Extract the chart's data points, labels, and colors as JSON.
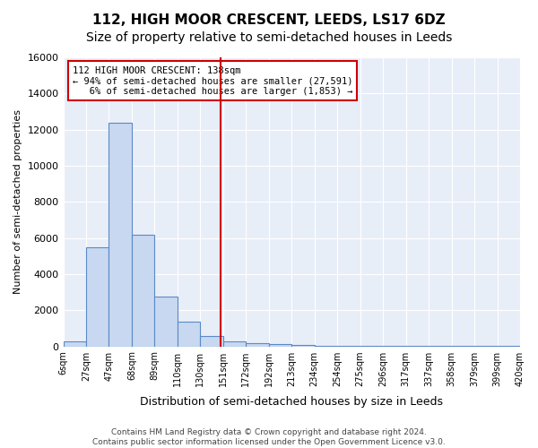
{
  "title": "112, HIGH MOOR CRESCENT, LEEDS, LS17 6DZ",
  "subtitle": "Size of property relative to semi-detached houses in Leeds",
  "xlabel": "Distribution of semi-detached houses by size in Leeds",
  "ylabel": "Number of semi-detached properties",
  "bin_edges": [
    "6sqm",
    "27sqm",
    "47sqm",
    "68sqm",
    "89sqm",
    "110sqm",
    "130sqm",
    "151sqm",
    "172sqm",
    "192sqm",
    "213sqm",
    "234sqm",
    "254sqm",
    "275sqm",
    "296sqm",
    "317sqm",
    "337sqm",
    "358sqm",
    "379sqm",
    "399sqm",
    "420sqm"
  ],
  "bar_values": [
    250,
    5500,
    12400,
    6200,
    2750,
    1350,
    550,
    250,
    175,
    125,
    75,
    50,
    30,
    20,
    10,
    5,
    5,
    5,
    5,
    5
  ],
  "bar_color": "#c8d8f0",
  "bar_edge_color": "#5a8ac6",
  "vline_position": 6.38,
  "vline_color": "#cc0000",
  "annotation_line1": "112 HIGH MOOR CRESCENT: 138sqm",
  "annotation_line2": "← 94% of semi-detached houses are smaller (27,591)",
  "annotation_line3": "   6% of semi-detached houses are larger (1,853) →",
  "annotation_box_color": "#ffffff",
  "annotation_box_edge": "#cc0000",
  "ylim": [
    0,
    16000
  ],
  "yticks": [
    0,
    2000,
    4000,
    6000,
    8000,
    10000,
    12000,
    14000,
    16000
  ],
  "bg_color": "#e8eef8",
  "footer_line1": "Contains HM Land Registry data © Crown copyright and database right 2024.",
  "footer_line2": "Contains public sector information licensed under the Open Government Licence v3.0.",
  "title_fontsize": 11,
  "subtitle_fontsize": 10
}
